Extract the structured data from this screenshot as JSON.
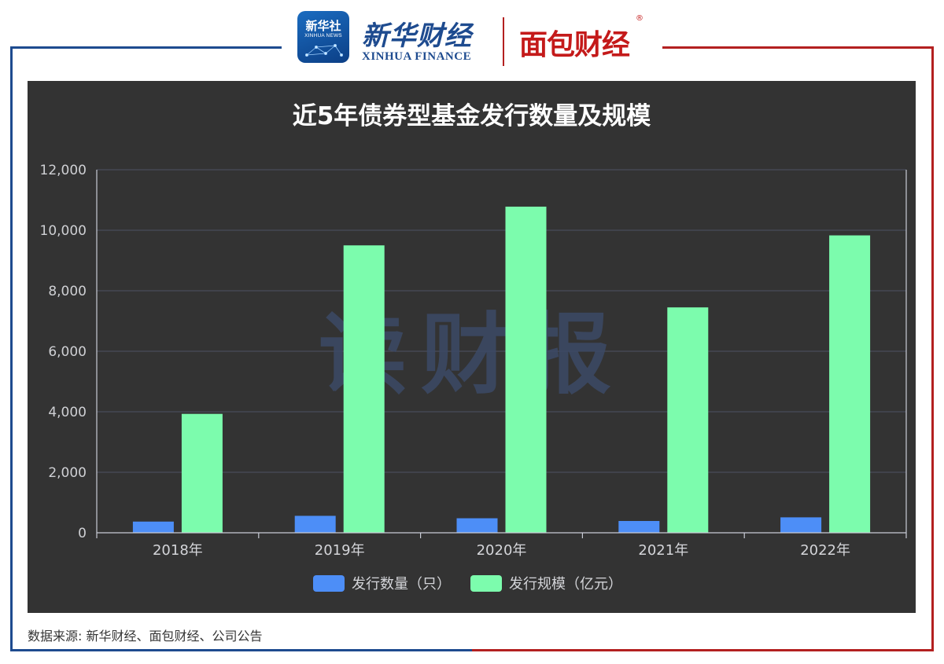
{
  "header": {
    "xinhua_badge_cn": "新华社",
    "xinhua_badge_en": "XINHUA NEWS",
    "xinhua_finance_cn": "新华财经",
    "xinhua_finance_en": "XINHUA FINANCE",
    "mianbao_logo": "面包财经",
    "registered_mark": "®"
  },
  "watermark": "读财报",
  "colors": {
    "panel_bg": "#333333",
    "series_count": "#4d8ef7",
    "series_scale": "#7cfcad",
    "frame_left": "#1e4b8f",
    "frame_right": "#b32020"
  },
  "chart_data": {
    "type": "bar",
    "title": "近5年债券型基金发行数量及规模",
    "categories": [
      "2018年",
      "2019年",
      "2020年",
      "2021年",
      "2022年"
    ],
    "series": [
      {
        "name": "发行数量（只）",
        "values": [
          370,
          560,
          480,
          390,
          510
        ]
      },
      {
        "name": "发行规模（亿元）",
        "values": [
          3930,
          9500,
          10780,
          7450,
          9830
        ]
      }
    ],
    "y_ticks": [
      "0",
      "2,000",
      "4,000",
      "6,000",
      "8,000",
      "10,000",
      "12,000"
    ],
    "ylim": [
      0,
      12000
    ],
    "xlabel": "",
    "ylabel": "",
    "grid": true,
    "legend_position": "bottom-center"
  },
  "footer": {
    "source": "数据来源: 新华财经、面包财经、公司公告"
  }
}
